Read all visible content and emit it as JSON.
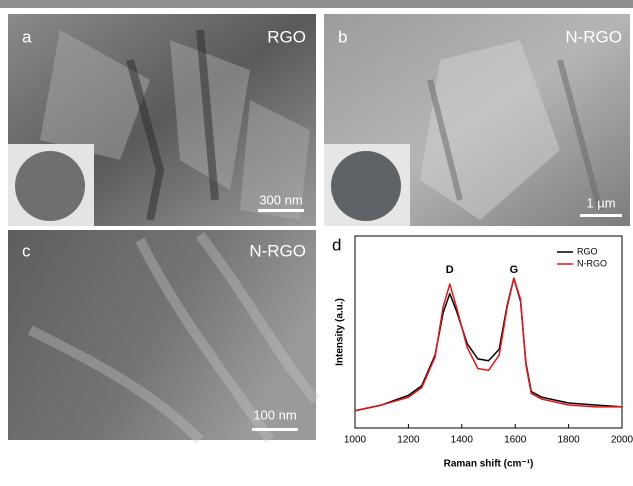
{
  "panels": [
    {
      "letter": "a",
      "label": "RGO",
      "scale_bar": "300 nm"
    },
    {
      "letter": "b",
      "label": "N-RGO",
      "scale_bar": "1 µm"
    },
    {
      "letter": "c",
      "label": "N-RGO",
      "scale_bar": "100 nm"
    },
    {
      "letter": "d"
    }
  ],
  "chart_data": {
    "type": "line",
    "xlabel": "Raman shift (cm⁻¹)",
    "ylabel": "Intensity (a.u.)",
    "x": [
      1000,
      1100,
      1200,
      1250,
      1300,
      1330,
      1355,
      1380,
      1420,
      1460,
      1500,
      1540,
      1570,
      1595,
      1620,
      1640,
      1660,
      1700,
      1800,
      1900,
      2000
    ],
    "series": [
      {
        "name": "RGO",
        "color": "#000000",
        "values": [
          0.09,
          0.12,
          0.17,
          0.22,
          0.38,
          0.6,
          0.7,
          0.61,
          0.44,
          0.36,
          0.35,
          0.41,
          0.64,
          0.78,
          0.66,
          0.34,
          0.19,
          0.16,
          0.13,
          0.12,
          0.11
        ]
      },
      {
        "name": "N-RGO",
        "color": "#e8141a",
        "values": [
          0.09,
          0.12,
          0.16,
          0.21,
          0.37,
          0.63,
          0.75,
          0.63,
          0.42,
          0.31,
          0.3,
          0.38,
          0.63,
          0.78,
          0.67,
          0.33,
          0.18,
          0.15,
          0.12,
          0.11,
          0.11
        ]
      }
    ],
    "annotations": [
      {
        "text": "D",
        "x": 1355
      },
      {
        "text": "G",
        "x": 1595
      }
    ],
    "xlim": [
      1000,
      2000
    ],
    "xticks": [
      1000,
      1200,
      1400,
      1600,
      1800,
      2000
    ],
    "ylim": [
      0,
      1
    ],
    "legend": "upper right"
  }
}
